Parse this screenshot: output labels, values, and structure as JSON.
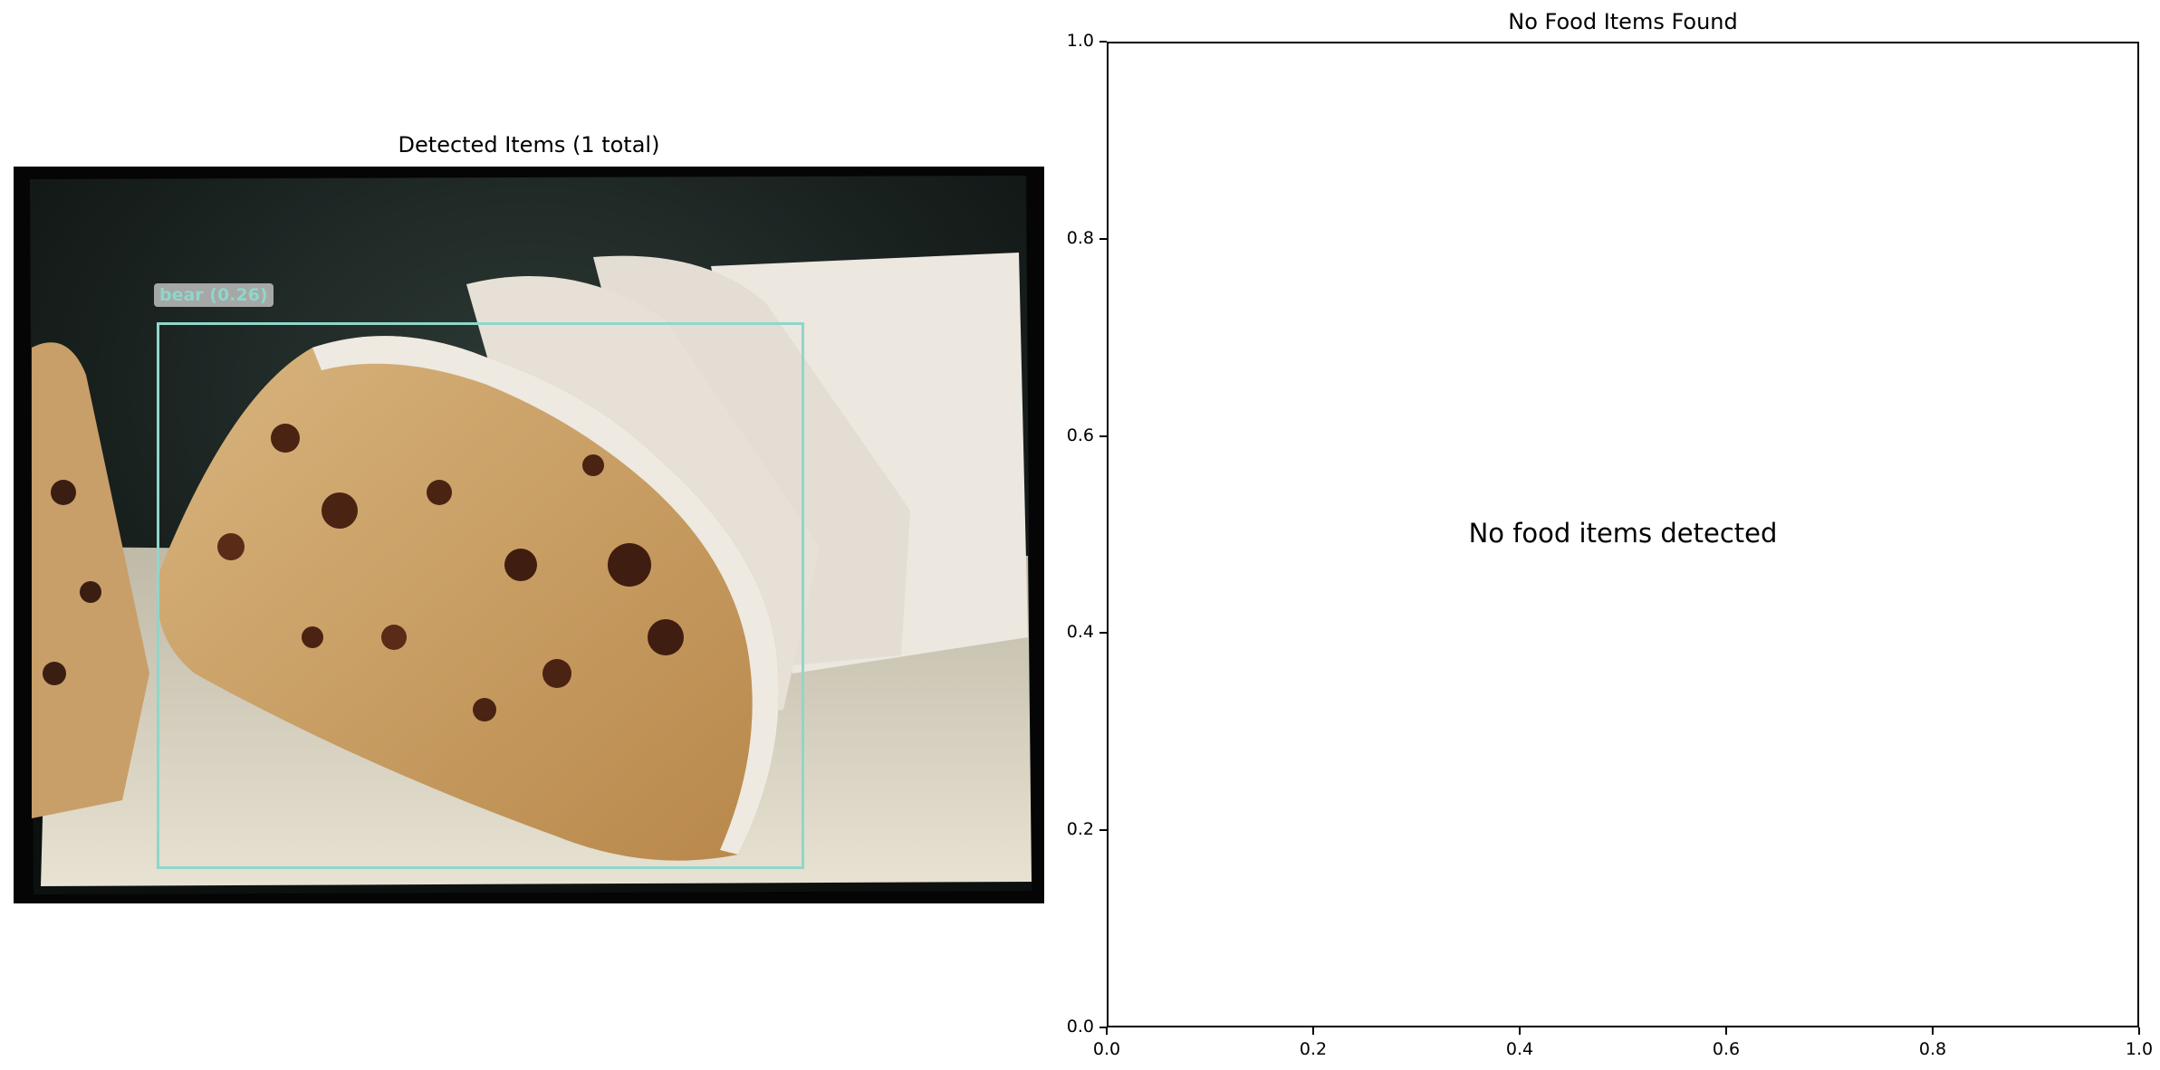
{
  "panels": {
    "left": {
      "title": "Detected Items (1 total)",
      "detection": {
        "label": "bear (0.26)",
        "color": "#8fd6cb"
      },
      "image_description_icon": "fruit-bread-photo"
    },
    "right": {
      "title": "No Food Items Found",
      "message": "No food items detected"
    }
  },
  "chart_data": {
    "type": "scatter",
    "title": "No Food Items Found",
    "xlabel": "",
    "ylabel": "",
    "xlim": [
      0.0,
      1.0
    ],
    "ylim": [
      0.0,
      1.0
    ],
    "x_ticks": [
      "0.0",
      "0.2",
      "0.4",
      "0.6",
      "0.8",
      "1.0"
    ],
    "y_ticks": [
      "0.0",
      "0.2",
      "0.4",
      "0.6",
      "0.8",
      "1.0"
    ],
    "series": [],
    "annotation": "No food items detected",
    "grid": false
  }
}
